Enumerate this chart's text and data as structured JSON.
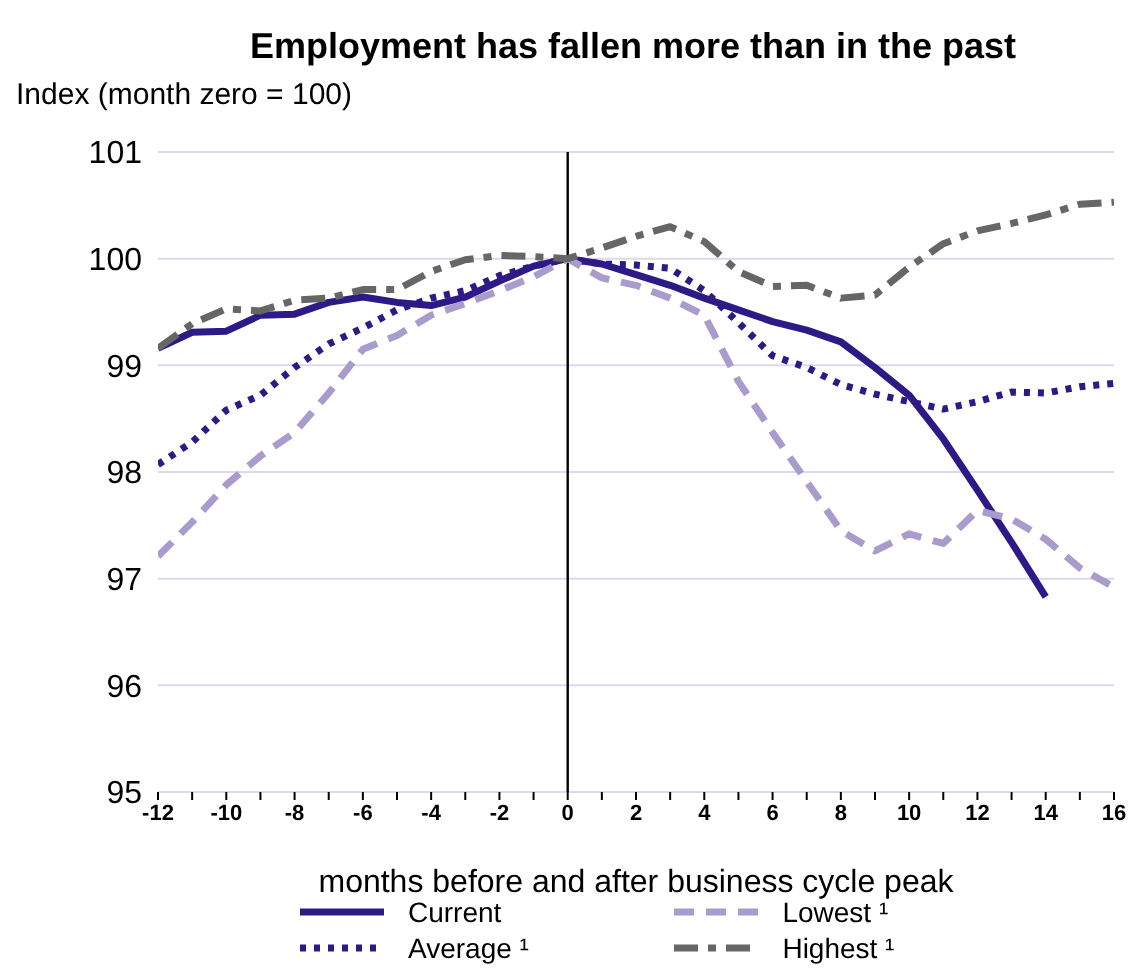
{
  "chart_data": {
    "type": "line",
    "title": "Employment has fallen more than in the past",
    "ylabel": "Index (month zero = 100)",
    "xlabel": "months before and after business cycle peak",
    "x": [
      -12,
      -11,
      -10,
      -9,
      -8,
      -7,
      -6,
      -5,
      -4,
      -3,
      -2,
      -1,
      0,
      1,
      2,
      3,
      4,
      5,
      6,
      7,
      8,
      9,
      10,
      11,
      12,
      13,
      14,
      15,
      16
    ],
    "series": [
      {
        "name": "Current",
        "color": "#2e1a87",
        "line_style": "solid",
        "values": [
          99.16,
          99.31,
          99.32,
          99.47,
          99.48,
          99.59,
          99.64,
          99.59,
          99.56,
          99.64,
          99.79,
          99.93,
          100,
          99.95,
          99.85,
          99.75,
          99.63,
          99.52,
          99.41,
          99.33,
          99.22,
          98.98,
          98.72,
          98.31,
          97.83,
          97.34,
          96.83,
          null,
          null
        ]
      },
      {
        "name": "Average ¹",
        "color": "#2e1a87",
        "line_style": "dotted",
        "values": [
          98.07,
          98.28,
          98.58,
          98.72,
          98.98,
          99.2,
          99.35,
          99.52,
          99.63,
          99.7,
          99.84,
          99.93,
          100,
          99.95,
          99.94,
          99.91,
          99.7,
          99.4,
          99.09,
          98.98,
          98.82,
          98.73,
          98.66,
          98.59,
          98.66,
          98.75,
          98.74,
          98.8,
          98.83
        ]
      },
      {
        "name": "Lowest ¹",
        "color": "#a99ccc",
        "line_style": "dashed",
        "values": [
          97.21,
          97.53,
          97.88,
          98.15,
          98.37,
          98.74,
          99.15,
          99.28,
          99.47,
          99.58,
          99.7,
          99.83,
          100,
          99.82,
          99.75,
          99.63,
          99.47,
          98.85,
          98.37,
          97.91,
          97.45,
          97.26,
          97.42,
          97.33,
          97.64,
          97.56,
          97.37,
          97.1,
          96.92
        ]
      },
      {
        "name": "Highest ¹",
        "color": "#666666",
        "line_style": "dashdot",
        "values": [
          99.16,
          99.39,
          99.53,
          99.51,
          99.61,
          99.63,
          99.71,
          99.71,
          99.88,
          99.99,
          100.03,
          100.02,
          100,
          100.1,
          100.21,
          100.3,
          100.16,
          99.88,
          99.74,
          99.75,
          99.63,
          99.66,
          99.92,
          100.14,
          100.26,
          100.33,
          100.41,
          100.51,
          100.53
        ]
      }
    ],
    "xlim": [
      -12,
      16
    ],
    "xticks": [
      -12,
      {
        "value": -11,
        "label": null
      },
      -10,
      {
        "value": -9,
        "label": null
      },
      -8,
      {
        "value": -7,
        "label": null
      },
      -6,
      {
        "value": -5,
        "label": null
      },
      -4,
      {
        "value": -3,
        "label": null
      },
      -2,
      {
        "value": -1,
        "label": null
      },
      0,
      {
        "value": 1,
        "label": null
      },
      2,
      {
        "value": 3,
        "label": null
      },
      4,
      {
        "value": 5,
        "label": null
      },
      6,
      {
        "value": 7,
        "label": null
      },
      8,
      {
        "value": 9,
        "label": null
      },
      10,
      {
        "value": 11,
        "label": null
      },
      12,
      {
        "value": 13,
        "label": null
      },
      14,
      {
        "value": 15,
        "label": null
      },
      16
    ],
    "ylim": [
      95,
      101
    ],
    "yticks": [
      95,
      96,
      97,
      98,
      99,
      100,
      101
    ],
    "grid": "y",
    "legend": "bottom",
    "ref_lines": [
      {
        "axis": "x",
        "value": 0,
        "color": "#000000"
      }
    ]
  }
}
